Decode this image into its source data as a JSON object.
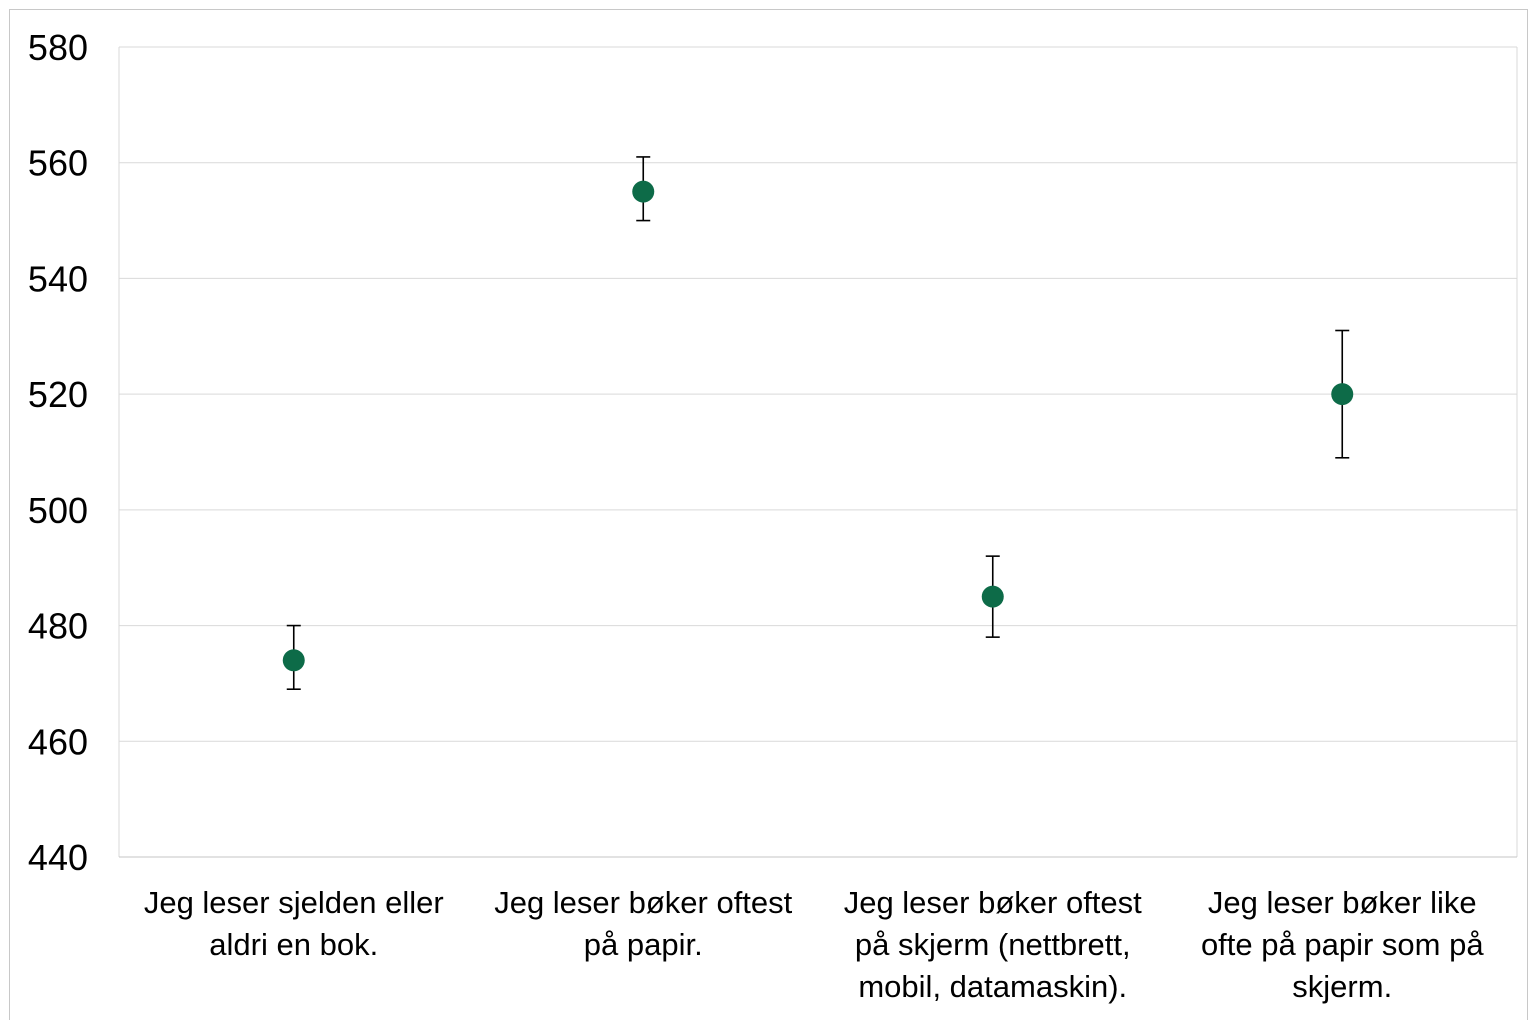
{
  "chart_data": {
    "type": "scatter",
    "title": "",
    "xlabel": "",
    "ylabel": "",
    "ylim": [
      440,
      580
    ],
    "yticks": [
      440,
      460,
      480,
      500,
      520,
      540,
      560,
      580
    ],
    "grid": true,
    "marker_color": "#0d6b48",
    "error_bar_color": "#000000",
    "categories": [
      [
        "Jeg leser sjelden eller",
        "aldri en bok."
      ],
      [
        "Jeg leser bøker oftest",
        "på papir."
      ],
      [
        "Jeg leser bøker oftest",
        "på skjerm (nettbrett,",
        "mobil, datamaskin)."
      ],
      [
        "Jeg leser bøker like",
        "ofte på papir som på",
        "skjerm."
      ]
    ],
    "values": [
      474,
      555,
      485,
      520
    ],
    "error_low": [
      469,
      550,
      478,
      509
    ],
    "error_high": [
      480,
      561,
      492,
      531
    ]
  }
}
